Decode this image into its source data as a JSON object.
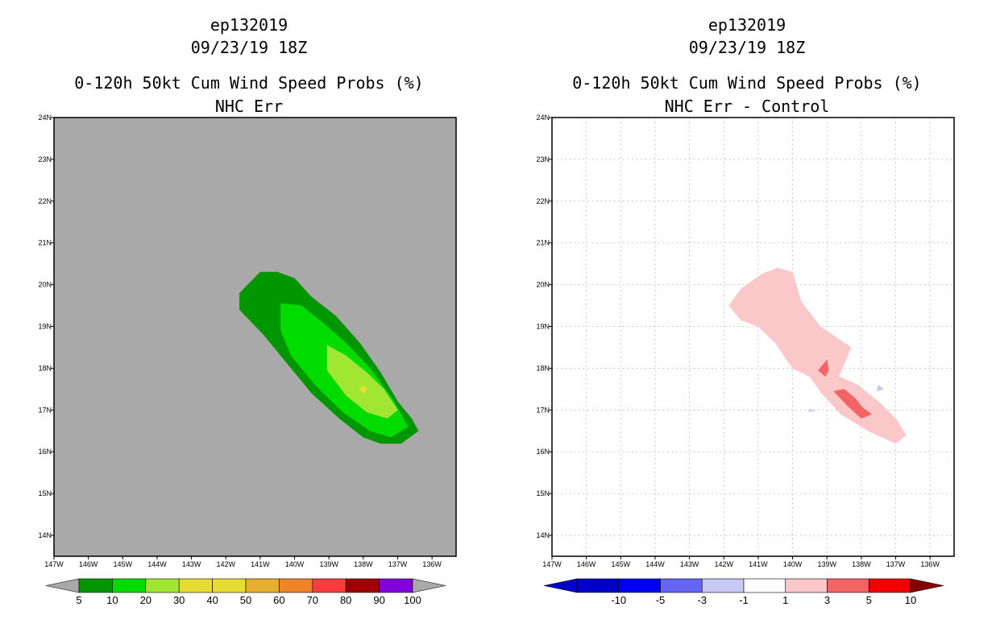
{
  "chart_data": [
    {
      "type": "heatmap",
      "title": [
        "ep132019",
        "09/23/19 18Z",
        "0-120h 50kt Cum Wind Speed Probs (%)",
        "NHC Err"
      ],
      "x_ticks": [
        "147W",
        "146W",
        "145W",
        "144W",
        "143W",
        "142W",
        "141W",
        "140W",
        "139W",
        "138W",
        "137W",
        "136W"
      ],
      "y_ticks": [
        "24N",
        "23N",
        "22N",
        "21N",
        "20N",
        "19N",
        "18N",
        "17N",
        "16N",
        "15N",
        "14N"
      ],
      "x_range": [
        -147,
        -135.3
      ],
      "y_range": [
        13.5,
        24
      ],
      "background": "#a9a9a9",
      "grid": false,
      "contours": [
        {
          "level": "5-10",
          "color": "#009600",
          "polygon": [
            [
              -141.6,
              19.8
            ],
            [
              -141.0,
              20.3
            ],
            [
              -140.5,
              20.3
            ],
            [
              -140.0,
              20.15
            ],
            [
              -139.5,
              19.7
            ],
            [
              -138.8,
              19.25
            ],
            [
              -138.1,
              18.6
            ],
            [
              -137.5,
              17.9
            ],
            [
              -137.0,
              17.2
            ],
            [
              -136.6,
              16.8
            ],
            [
              -136.4,
              16.5
            ],
            [
              -136.9,
              16.2
            ],
            [
              -137.5,
              16.2
            ],
            [
              -138.0,
              16.35
            ],
            [
              -138.7,
              16.8
            ],
            [
              -139.5,
              17.4
            ],
            [
              -140.2,
              18.1
            ],
            [
              -140.9,
              18.8
            ],
            [
              -141.6,
              19.4
            ]
          ]
        },
        {
          "level": "10-20",
          "color": "#00dc00",
          "polygon": [
            [
              -140.4,
              19.55
            ],
            [
              -139.8,
              19.5
            ],
            [
              -139.2,
              19.1
            ],
            [
              -138.5,
              18.6
            ],
            [
              -137.8,
              18.0
            ],
            [
              -137.1,
              17.2
            ],
            [
              -136.7,
              16.6
            ],
            [
              -137.2,
              16.35
            ],
            [
              -137.8,
              16.5
            ],
            [
              -138.6,
              16.95
            ],
            [
              -139.4,
              17.6
            ],
            [
              -140.1,
              18.3
            ],
            [
              -140.4,
              18.9
            ]
          ]
        },
        {
          "level": "20-30",
          "color": "#a0e632",
          "polygon": [
            [
              -139.05,
              18.55
            ],
            [
              -138.5,
              18.3
            ],
            [
              -137.9,
              17.9
            ],
            [
              -137.4,
              17.5
            ],
            [
              -137.0,
              17.0
            ],
            [
              -137.3,
              16.8
            ],
            [
              -137.9,
              16.95
            ],
            [
              -138.5,
              17.35
            ],
            [
              -139.05,
              17.95
            ]
          ]
        },
        {
          "level": "30-40",
          "color": "#e6dc32",
          "polygon": [
            [
              -138.0,
              17.6
            ],
            [
              -137.88,
              17.5
            ],
            [
              -138.0,
              17.4
            ],
            [
              -138.12,
              17.5
            ]
          ]
        }
      ],
      "colorbar": {
        "labels": [
          "5",
          "10",
          "20",
          "30",
          "40",
          "50",
          "60",
          "70",
          "80",
          "90",
          "100"
        ],
        "colors": [
          "#009600",
          "#00dc00",
          "#a0e632",
          "#e6dc32",
          "#e6dc32",
          "#e6af2d",
          "#f08228",
          "#fa3c3c",
          "#a00000",
          "#8200dc"
        ],
        "under_color": "#a9a9a9",
        "over_color": "#a9a9a9"
      }
    },
    {
      "type": "heatmap",
      "title": [
        "ep132019",
        "09/23/19 18Z",
        "0-120h 50kt Cum Wind Speed Probs (%)",
        "NHC Err - Control"
      ],
      "x_ticks": [
        "147W",
        "146W",
        "145W",
        "144W",
        "143W",
        "142W",
        "141W",
        "140W",
        "139W",
        "138W",
        "137W",
        "136W"
      ],
      "y_ticks": [
        "24N",
        "23N",
        "22N",
        "21N",
        "20N",
        "19N",
        "18N",
        "17N",
        "16N",
        "15N",
        "14N"
      ],
      "x_range": [
        -147,
        -135.3
      ],
      "y_range": [
        13.5,
        24
      ],
      "background": "#ffffff",
      "grid": true,
      "contours": [
        {
          "level": "1-3",
          "color": "#fac8c8",
          "polygon": [
            [
              -141.85,
              19.5
            ],
            [
              -141.5,
              19.9
            ],
            [
              -140.9,
              20.25
            ],
            [
              -140.45,
              20.4
            ],
            [
              -140.0,
              20.3
            ],
            [
              -139.75,
              19.6
            ],
            [
              -139.2,
              19.0
            ],
            [
              -138.3,
              18.5
            ],
            [
              -138.65,
              17.8
            ],
            [
              -138.1,
              17.6
            ],
            [
              -137.5,
              17.2
            ],
            [
              -137.0,
              16.8
            ],
            [
              -136.7,
              16.4
            ],
            [
              -137.0,
              16.2
            ],
            [
              -137.8,
              16.5
            ],
            [
              -138.6,
              16.9
            ],
            [
              -139.15,
              17.4
            ],
            [
              -139.5,
              17.8
            ],
            [
              -140.0,
              18.0
            ],
            [
              -140.5,
              18.6
            ],
            [
              -141.0,
              19.0
            ],
            [
              -141.5,
              19.15
            ]
          ]
        },
        {
          "level": "3-5",
          "color": "#f56464",
          "polygon": [
            [
              -138.5,
              17.5
            ],
            [
              -138.2,
              17.3
            ],
            [
              -137.95,
              17.05
            ],
            [
              -137.7,
              16.9
            ],
            [
              -138.0,
              16.8
            ],
            [
              -138.4,
              17.1
            ],
            [
              -138.8,
              17.45
            ]
          ]
        },
        {
          "level": "3-5",
          "color": "#f56464",
          "polygon": [
            [
              -139.0,
              18.2
            ],
            [
              -138.95,
              17.95
            ],
            [
              -139.05,
              17.8
            ],
            [
              -139.25,
              17.95
            ]
          ]
        },
        {
          "level": "-3--1",
          "color": "#c8c8f5",
          "polygon": [
            [
              -137.5,
              17.6
            ],
            [
              -137.35,
              17.5
            ],
            [
              -137.55,
              17.45
            ]
          ]
        },
        {
          "level": "-3--1",
          "color": "#c8c8f5",
          "polygon": [
            [
              -139.5,
              17.02
            ],
            [
              -139.35,
              16.98
            ],
            [
              -139.55,
              16.96
            ]
          ]
        }
      ],
      "colorbar": {
        "labels": [
          "-10",
          "-5",
          "-3",
          "-1",
          "1",
          "3",
          "5",
          "10"
        ],
        "colors": [
          "#0000c8",
          "#0000f5",
          "#6464f5",
          "#c8c8f5",
          "#ffffff",
          "#fac8c8",
          "#f56464",
          "#f50000"
        ],
        "under_color": "#0000c8",
        "over_color": "#820000"
      }
    }
  ]
}
